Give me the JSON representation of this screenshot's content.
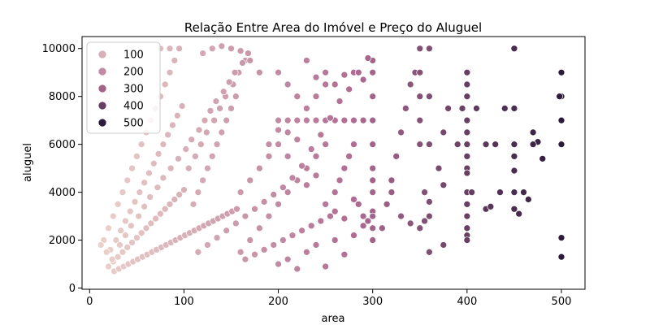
{
  "chart_data": {
    "type": "scatter",
    "title": "Relação Entre Area do Imóvel e Preço do Aluguel",
    "xlabel": "area",
    "ylabel": "aluguel",
    "xlim": [
      -8,
      525
    ],
    "ylim": [
      -50,
      10500
    ],
    "xticks": [
      0,
      100,
      200,
      300,
      400,
      500
    ],
    "yticks": [
      0,
      2000,
      4000,
      6000,
      8000,
      10000
    ],
    "grid": false,
    "hue_range": [
      10,
      500
    ],
    "colors": {
      "low": "#ecd2cb",
      "high": "#2b1a3a"
    },
    "legend": {
      "placement": "upper-left",
      "entries": [
        {
          "label": "100",
          "value": 100
        },
        {
          "label": "200",
          "value": 200
        },
        {
          "label": "300",
          "value": 300
        },
        {
          "label": "400",
          "value": 400
        },
        {
          "label": "500",
          "value": 500
        }
      ]
    },
    "points": [
      [
        20,
        900
      ],
      [
        25,
        1100
      ],
      [
        30,
        1300
      ],
      [
        35,
        1500
      ],
      [
        40,
        1700
      ],
      [
        45,
        1900
      ],
      [
        50,
        2100
      ],
      [
        55,
        2300
      ],
      [
        60,
        2500
      ],
      [
        65,
        2700
      ],
      [
        70,
        2900
      ],
      [
        75,
        3100
      ],
      [
        80,
        3300
      ],
      [
        85,
        3500
      ],
      [
        90,
        3700
      ],
      [
        95,
        3900
      ],
      [
        100,
        4100
      ],
      [
        22,
        1600
      ],
      [
        28,
        2000
      ],
      [
        33,
        2400
      ],
      [
        38,
        2800
      ],
      [
        43,
        3200
      ],
      [
        48,
        3600
      ],
      [
        53,
        4000
      ],
      [
        58,
        4400
      ],
      [
        63,
        4800
      ],
      [
        68,
        5200
      ],
      [
        73,
        5600
      ],
      [
        78,
        6000
      ],
      [
        83,
        6400
      ],
      [
        88,
        6800
      ],
      [
        93,
        7200
      ],
      [
        98,
        7600
      ],
      [
        26,
        700
      ],
      [
        31,
        800
      ],
      [
        36,
        900
      ],
      [
        41,
        1000
      ],
      [
        46,
        1100
      ],
      [
        51,
        1200
      ],
      [
        56,
        1300
      ],
      [
        61,
        1400
      ],
      [
        66,
        1500
      ],
      [
        71,
        1600
      ],
      [
        76,
        1700
      ],
      [
        81,
        1800
      ],
      [
        86,
        1900
      ],
      [
        91,
        2000
      ],
      [
        96,
        2100
      ],
      [
        101,
        2200
      ],
      [
        106,
        2300
      ],
      [
        111,
        2400
      ],
      [
        116,
        2500
      ],
      [
        121,
        2600
      ],
      [
        126,
        2700
      ],
      [
        131,
        2800
      ],
      [
        136,
        2900
      ],
      [
        141,
        3000
      ],
      [
        146,
        3100
      ],
      [
        151,
        3200
      ],
      [
        156,
        3300
      ],
      [
        110,
        3500
      ],
      [
        115,
        4000
      ],
      [
        120,
        4500
      ],
      [
        125,
        5000
      ],
      [
        130,
        5500
      ],
      [
        135,
        6000
      ],
      [
        140,
        6500
      ],
      [
        145,
        7000
      ],
      [
        150,
        7500
      ],
      [
        155,
        8000
      ],
      [
        105,
        5000
      ],
      [
        112,
        5500
      ],
      [
        118,
        6000
      ],
      [
        124,
        6500
      ],
      [
        132,
        7000
      ],
      [
        138,
        7500
      ],
      [
        144,
        8000
      ],
      [
        152,
        8500
      ],
      [
        158,
        9000
      ],
      [
        165,
        9500
      ],
      [
        75,
        10000
      ],
      [
        85,
        10000
      ],
      [
        95,
        10000
      ],
      [
        120,
        9800
      ],
      [
        130,
        10000
      ],
      [
        140,
        10100
      ],
      [
        150,
        10000
      ],
      [
        160,
        9900
      ],
      [
        170,
        9500
      ],
      [
        180,
        9000
      ],
      [
        160,
        1500
      ],
      [
        170,
        2000
      ],
      [
        180,
        2500
      ],
      [
        190,
        3000
      ],
      [
        200,
        3500
      ],
      [
        210,
        4000
      ],
      [
        220,
        4500
      ],
      [
        230,
        5000
      ],
      [
        240,
        5500
      ],
      [
        250,
        6000
      ],
      [
        160,
        4000
      ],
      [
        170,
        4500
      ],
      [
        180,
        5000
      ],
      [
        190,
        5500
      ],
      [
        200,
        6000
      ],
      [
        210,
        6500
      ],
      [
        220,
        7000
      ],
      [
        230,
        7500
      ],
      [
        240,
        8000
      ],
      [
        250,
        8500
      ],
      [
        165,
        1200
      ],
      [
        175,
        1400
      ],
      [
        185,
        1600
      ],
      [
        195,
        1800
      ],
      [
        205,
        2000
      ],
      [
        215,
        2200
      ],
      [
        225,
        2400
      ],
      [
        235,
        2600
      ],
      [
        245,
        2800
      ],
      [
        255,
        3000
      ],
      [
        200,
        1000
      ],
      [
        210,
        1200
      ],
      [
        220,
        800
      ],
      [
        230,
        1500
      ],
      [
        240,
        1800
      ],
      [
        250,
        900
      ],
      [
        260,
        2000
      ],
      [
        270,
        1400
      ],
      [
        280,
        2200
      ],
      [
        290,
        2600
      ],
      [
        200,
        9000
      ],
      [
        210,
        8500
      ],
      [
        220,
        8000
      ],
      [
        230,
        9500
      ],
      [
        240,
        8800
      ],
      [
        250,
        9000
      ],
      [
        260,
        8500
      ],
      [
        270,
        8900
      ],
      [
        280,
        9000
      ],
      [
        290,
        8700
      ],
      [
        200,
        7000
      ],
      [
        210,
        7000
      ],
      [
        220,
        7000
      ],
      [
        230,
        7000
      ],
      [
        240,
        7000
      ],
      [
        250,
        7000
      ],
      [
        260,
        7000
      ],
      [
        270,
        7000
      ],
      [
        280,
        7000
      ],
      [
        290,
        7000
      ],
      [
        260,
        4000
      ],
      [
        265,
        4500
      ],
      [
        270,
        5000
      ],
      [
        275,
        5500
      ],
      [
        280,
        6000
      ],
      [
        285,
        3500
      ],
      [
        290,
        3000
      ],
      [
        295,
        2800
      ],
      [
        300,
        3200
      ],
      [
        300,
        2000
      ],
      [
        300,
        4000
      ],
      [
        300,
        5000
      ],
      [
        300,
        6000
      ],
      [
        300,
        7000
      ],
      [
        300,
        8000
      ],
      [
        300,
        9000
      ],
      [
        300,
        9500
      ],
      [
        300,
        2500
      ],
      [
        300,
        3000
      ],
      [
        300,
        4500
      ],
      [
        310,
        2500
      ],
      [
        315,
        3500
      ],
      [
        320,
        4500
      ],
      [
        325,
        5500
      ],
      [
        330,
        6500
      ],
      [
        335,
        7500
      ],
      [
        340,
        8500
      ],
      [
        345,
        9000
      ],
      [
        350,
        6000
      ],
      [
        350,
        7000
      ],
      [
        350,
        8000
      ],
      [
        350,
        9000
      ],
      [
        355,
        4000
      ],
      [
        360,
        3000
      ],
      [
        360,
        6000
      ],
      [
        360,
        8000
      ],
      [
        360,
        10000
      ],
      [
        350,
        10000
      ],
      [
        320,
        4000
      ],
      [
        330,
        3000
      ],
      [
        340,
        2700
      ],
      [
        350,
        2500
      ],
      [
        355,
        2800
      ],
      [
        360,
        1500
      ],
      [
        360,
        3600
      ],
      [
        370,
        5000
      ],
      [
        375,
        1800
      ],
      [
        375,
        4300
      ],
      [
        380,
        7500
      ],
      [
        375,
        6500
      ],
      [
        390,
        6000
      ],
      [
        395,
        7500
      ],
      [
        400,
        2200
      ],
      [
        400,
        2500
      ],
      [
        400,
        3000
      ],
      [
        400,
        3500
      ],
      [
        400,
        4000
      ],
      [
        400,
        5000
      ],
      [
        400,
        5500
      ],
      [
        400,
        6000
      ],
      [
        400,
        7000
      ],
      [
        400,
        8000
      ],
      [
        400,
        9000
      ],
      [
        400,
        8500
      ],
      [
        400,
        4800
      ],
      [
        400,
        6500
      ],
      [
        400,
        2000
      ],
      [
        405,
        4000
      ],
      [
        410,
        7500
      ],
      [
        420,
        6000
      ],
      [
        420,
        3300
      ],
      [
        425,
        3400
      ],
      [
        430,
        6000
      ],
      [
        435,
        4000
      ],
      [
        440,
        7500
      ],
      [
        450,
        4000
      ],
      [
        450,
        3300
      ],
      [
        450,
        4900
      ],
      [
        450,
        5500
      ],
      [
        450,
        6000
      ],
      [
        450,
        7500
      ],
      [
        450,
        10000
      ],
      [
        455,
        3100
      ],
      [
        460,
        4000
      ],
      [
        465,
        3700
      ],
      [
        470,
        6500
      ],
      [
        475,
        6100
      ],
      [
        480,
        5400
      ],
      [
        470,
        6000
      ],
      [
        500,
        9000
      ],
      [
        500,
        8000
      ],
      [
        500,
        7000
      ],
      [
        500,
        6000
      ],
      [
        500,
        2100
      ],
      [
        500,
        1300
      ],
      [
        498,
        8000
      ],
      [
        15,
        2000
      ],
      [
        20,
        2500
      ],
      [
        25,
        3000
      ],
      [
        30,
        3500
      ],
      [
        35,
        4000
      ],
      [
        40,
        4500
      ],
      [
        45,
        5000
      ],
      [
        50,
        5500
      ],
      [
        55,
        6000
      ],
      [
        60,
        6500
      ],
      [
        65,
        7000
      ],
      [
        70,
        7500
      ],
      [
        75,
        8000
      ],
      [
        80,
        8500
      ],
      [
        85,
        9000
      ],
      [
        90,
        9500
      ],
      [
        12,
        1800
      ],
      [
        18,
        1500
      ],
      [
        24,
        1200
      ],
      [
        32,
        1800
      ],
      [
        38,
        2200
      ],
      [
        44,
        2600
      ],
      [
        52,
        3000
      ],
      [
        58,
        3400
      ],
      [
        64,
        3800
      ],
      [
        72,
        4200
      ],
      [
        78,
        4600
      ],
      [
        86,
        5000
      ],
      [
        94,
        5400
      ],
      [
        102,
        5800
      ],
      [
        108,
        6200
      ],
      [
        116,
        6600
      ],
      [
        122,
        7000
      ],
      [
        128,
        7400
      ],
      [
        134,
        7800
      ],
      [
        142,
        8200
      ],
      [
        148,
        8600
      ],
      [
        154,
        9000
      ],
      [
        162,
        9400
      ],
      [
        168,
        9800
      ],
      [
        115,
        1500
      ],
      [
        125,
        1800
      ],
      [
        135,
        2100
      ],
      [
        145,
        2400
      ],
      [
        155,
        2700
      ],
      [
        165,
        3000
      ],
      [
        175,
        3300
      ],
      [
        185,
        3600
      ],
      [
        195,
        3900
      ],
      [
        205,
        4200
      ],
      [
        215,
        4600
      ],
      [
        225,
        5100
      ],
      [
        235,
        5800
      ],
      [
        245,
        6400
      ],
      [
        255,
        7100
      ],
      [
        265,
        7800
      ],
      [
        275,
        8300
      ],
      [
        285,
        9000
      ],
      [
        295,
        9600
      ],
      [
        190,
        6000
      ],
      [
        200,
        6600
      ],
      [
        210,
        5500
      ],
      [
        220,
        6200
      ],
      [
        230,
        4300
      ],
      [
        240,
        4700
      ],
      [
        250,
        3500
      ],
      [
        260,
        3200
      ],
      [
        270,
        2900
      ],
      [
        280,
        3700
      ]
    ]
  }
}
